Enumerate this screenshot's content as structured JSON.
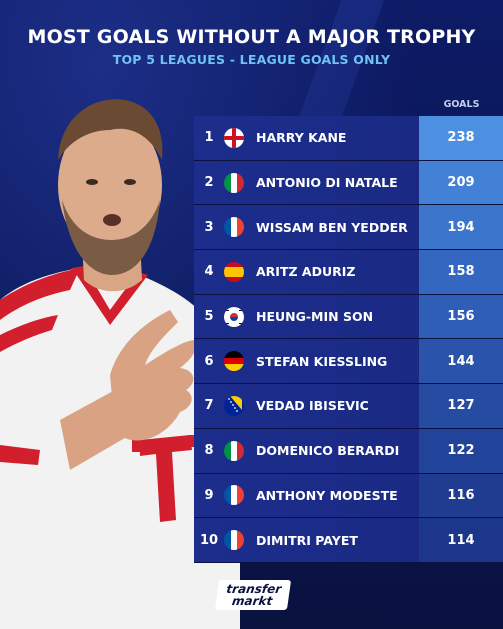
{
  "title": "MOST GOALS WITHOUT A MAJOR TROPHY",
  "subtitle": "TOP 5 LEAGUES - LEAGUE GOALS ONLY",
  "goals_header": "GOALS",
  "rows": [
    {
      "rank": "1",
      "flag": "england-flag-icon",
      "name": "HARRY KANE",
      "goals": "238"
    },
    {
      "rank": "2",
      "flag": "italy-flag-icon",
      "name": "ANTONIO DI NATALE",
      "goals": "209"
    },
    {
      "rank": "3",
      "flag": "france-flag-icon",
      "name": "WISSAM BEN YEDDER",
      "goals": "194"
    },
    {
      "rank": "4",
      "flag": "spain-flag-icon",
      "name": "ARITZ ADURIZ",
      "goals": "158"
    },
    {
      "rank": "5",
      "flag": "south-korea-flag-icon",
      "name": "HEUNG-MIN SON",
      "goals": "156"
    },
    {
      "rank": "6",
      "flag": "germany-flag-icon",
      "name": "STEFAN KIESSLING",
      "goals": "144"
    },
    {
      "rank": "7",
      "flag": "bosnia-flag-icon",
      "name": "VEDAD IBISEVIC",
      "goals": "127"
    },
    {
      "rank": "8",
      "flag": "italy-flag-icon",
      "name": "DOMENICO BERARDI",
      "goals": "122"
    },
    {
      "rank": "9",
      "flag": "france-flag-icon",
      "name": "ANTHONY MODESTE",
      "goals": "116"
    },
    {
      "rank": "10",
      "flag": "france-flag-icon",
      "name": "DIMITRI PAYET",
      "goals": "114"
    }
  ],
  "goals_colors": [
    "#4d8fe0",
    "#4381d6",
    "#3b75cc",
    "#3468c0",
    "#2f5eb6",
    "#2a54ab",
    "#264ca2",
    "#22439a",
    "#1f3c91",
    "#1c3689"
  ],
  "logo": {
    "line1": "transfer",
    "line2": "markt"
  }
}
